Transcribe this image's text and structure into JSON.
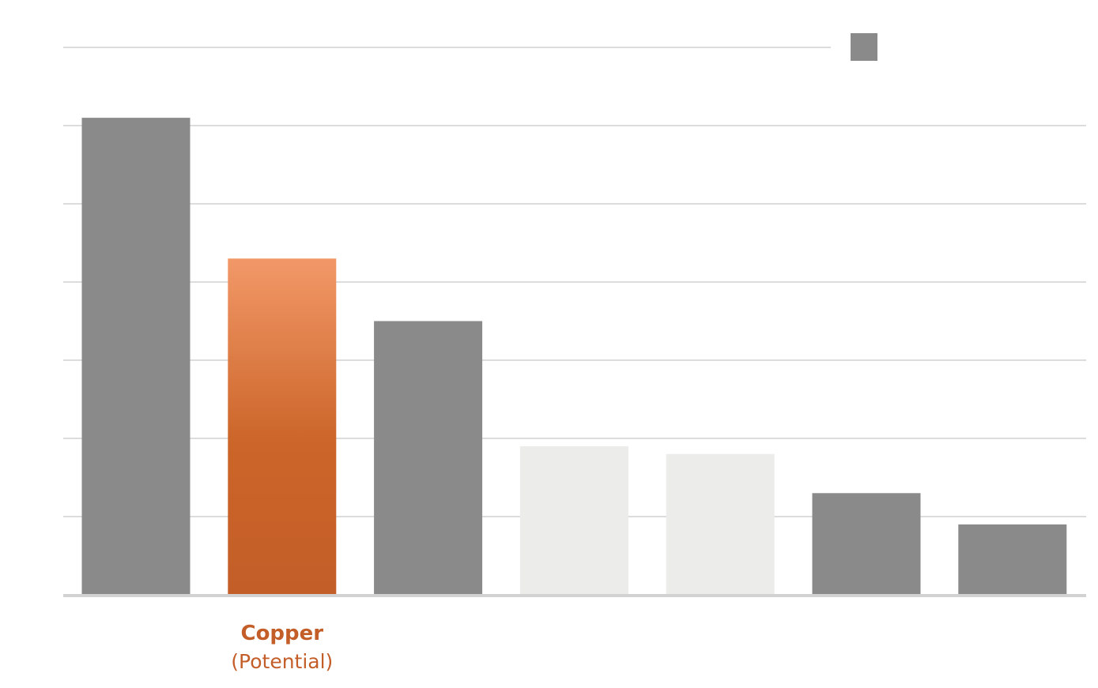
{
  "chart_data": {
    "type": "bar",
    "categories": [
      "",
      "Copper",
      "",
      "",
      "",
      "",
      ""
    ],
    "category_sublabels": [
      "",
      "(Potential)",
      "",
      "",
      "",
      "",
      ""
    ],
    "values": [
      6.1,
      4.3,
      3.5,
      1.9,
      1.8,
      1.3,
      0.9
    ],
    "bar_colors": [
      "#898a89",
      "gradient-orange",
      "#898a89",
      "#ececea",
      "#ececea",
      "#898a89",
      "#898a89"
    ],
    "ylim": [
      0,
      7
    ],
    "grid": true,
    "legend": [
      {
        "name": "",
        "color": "#898a89"
      }
    ],
    "legend_position": "top-right",
    "title": "",
    "xlabel": "",
    "ylabel": ""
  },
  "colors": {
    "gray_bar": "#898a89",
    "light_bar": "#ececea",
    "orange_top": "#f29868",
    "orange_bottom": "#c45e29",
    "gridline": "#dcdcdc",
    "baseline": "#d2d2d2",
    "label": "#c45e29"
  }
}
